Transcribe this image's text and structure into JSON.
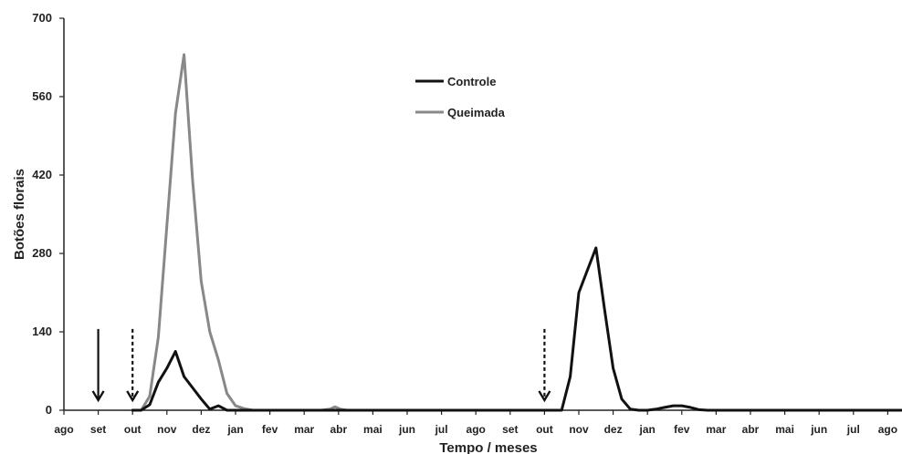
{
  "chart_data": {
    "type": "line",
    "title": "",
    "xlabel": "Tempo / meses",
    "ylabel": "Botões florais",
    "ylim": [
      0,
      700
    ],
    "yticks": [
      0,
      140,
      280,
      420,
      560,
      700
    ],
    "xtick_labels": [
      "ago",
      "set",
      "out",
      "nov",
      "dez",
      "jan",
      "fev",
      "mar",
      "abr",
      "mai",
      "jun",
      "jul",
      "ago",
      "set",
      "out",
      "nov",
      "dez",
      "jan",
      "fev",
      "mar",
      "abr",
      "mai",
      "jun",
      "jul",
      "ago"
    ],
    "grid": false,
    "legend_placement": "top-center",
    "series": [
      {
        "name": "Controle",
        "color": "#111111",
        "points": [
          [
            2.0,
            0
          ],
          [
            2.25,
            0
          ],
          [
            2.5,
            10
          ],
          [
            2.75,
            50
          ],
          [
            3.0,
            75
          ],
          [
            3.25,
            105
          ],
          [
            3.5,
            60
          ],
          [
            3.75,
            40
          ],
          [
            4.0,
            20
          ],
          [
            4.25,
            2
          ],
          [
            4.5,
            8
          ],
          [
            4.75,
            0
          ],
          [
            5.0,
            0
          ],
          [
            5.5,
            0
          ],
          [
            6.0,
            0
          ],
          [
            7.0,
            0
          ],
          [
            8.0,
            0
          ],
          [
            9.0,
            0
          ],
          [
            10.0,
            0
          ],
          [
            11.0,
            0
          ],
          [
            12.0,
            0
          ],
          [
            13.0,
            0
          ],
          [
            14.0,
            0
          ],
          [
            14.5,
            0
          ],
          [
            14.75,
            60
          ],
          [
            15.0,
            210
          ],
          [
            15.25,
            250
          ],
          [
            15.5,
            290
          ],
          [
            15.75,
            180
          ],
          [
            16.0,
            75
          ],
          [
            16.25,
            20
          ],
          [
            16.5,
            2
          ],
          [
            16.75,
            0
          ],
          [
            17.0,
            0
          ],
          [
            17.25,
            2
          ],
          [
            17.5,
            5
          ],
          [
            17.75,
            8
          ],
          [
            18.0,
            8
          ],
          [
            18.25,
            5
          ],
          [
            18.5,
            1
          ],
          [
            18.75,
            0
          ],
          [
            19.0,
            0
          ],
          [
            20.0,
            0
          ],
          [
            21.0,
            0
          ],
          [
            22.0,
            0
          ],
          [
            23.0,
            0
          ],
          [
            24.0,
            0
          ],
          [
            24.4,
            0
          ]
        ]
      },
      {
        "name": "Queimada",
        "color": "#888888",
        "points": [
          [
            2.0,
            0
          ],
          [
            2.25,
            0
          ],
          [
            2.5,
            25
          ],
          [
            2.75,
            130
          ],
          [
            3.0,
            330
          ],
          [
            3.25,
            530
          ],
          [
            3.5,
            635
          ],
          [
            3.75,
            410
          ],
          [
            4.0,
            230
          ],
          [
            4.25,
            140
          ],
          [
            4.5,
            90
          ],
          [
            4.75,
            30
          ],
          [
            5.0,
            8
          ],
          [
            5.25,
            3
          ],
          [
            5.5,
            0
          ],
          [
            6.0,
            0
          ],
          [
            7.0,
            0
          ],
          [
            7.5,
            0
          ],
          [
            7.75,
            2
          ],
          [
            7.9,
            6
          ],
          [
            8.05,
            2
          ],
          [
            8.25,
            0
          ],
          [
            9.0,
            0
          ],
          [
            10.0,
            0
          ],
          [
            11.0,
            0
          ],
          [
            12.0,
            0
          ]
        ]
      }
    ],
    "annotations": [
      {
        "type": "arrow",
        "style": "solid",
        "x": 1,
        "from_y": 145,
        "to_y": 18
      },
      {
        "type": "arrow",
        "style": "dashed",
        "x": 2,
        "from_y": 145,
        "to_y": 18
      },
      {
        "type": "arrow",
        "style": "dashed",
        "x": 14,
        "from_y": 145,
        "to_y": 18
      }
    ]
  }
}
